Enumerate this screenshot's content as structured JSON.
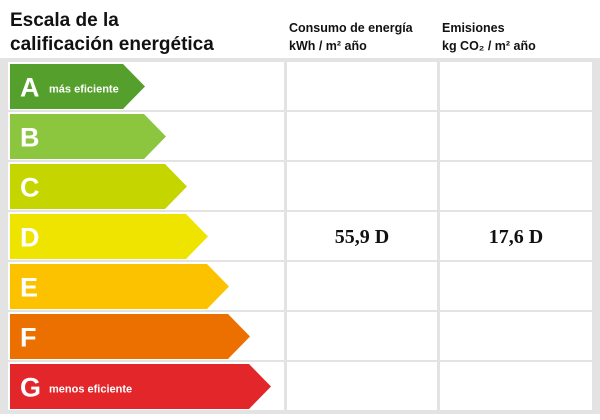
{
  "title": [
    "Escala de la",
    "calificación energética"
  ],
  "columns": [
    {
      "lines": [
        "Consumo de energía",
        "kWh / m² año"
      ]
    },
    {
      "lines": [
        "Emisiones",
        "kg CO₂ / m² año"
      ]
    }
  ],
  "rows": [
    {
      "letter": "A",
      "note": "más eficiente",
      "cells": [
        "",
        ""
      ]
    },
    {
      "letter": "B",
      "cells": [
        "",
        ""
      ]
    },
    {
      "letter": "C",
      "cells": [
        "",
        ""
      ]
    },
    {
      "letter": "D",
      "cells": [
        "55,9 D",
        "17,6 D"
      ]
    },
    {
      "letter": "E",
      "cells": [
        "",
        ""
      ]
    },
    {
      "letter": "F",
      "cells": [
        "",
        ""
      ]
    },
    {
      "letter": "G",
      "note": "menos eficiente",
      "cells": [
        "",
        ""
      ]
    }
  ]
}
